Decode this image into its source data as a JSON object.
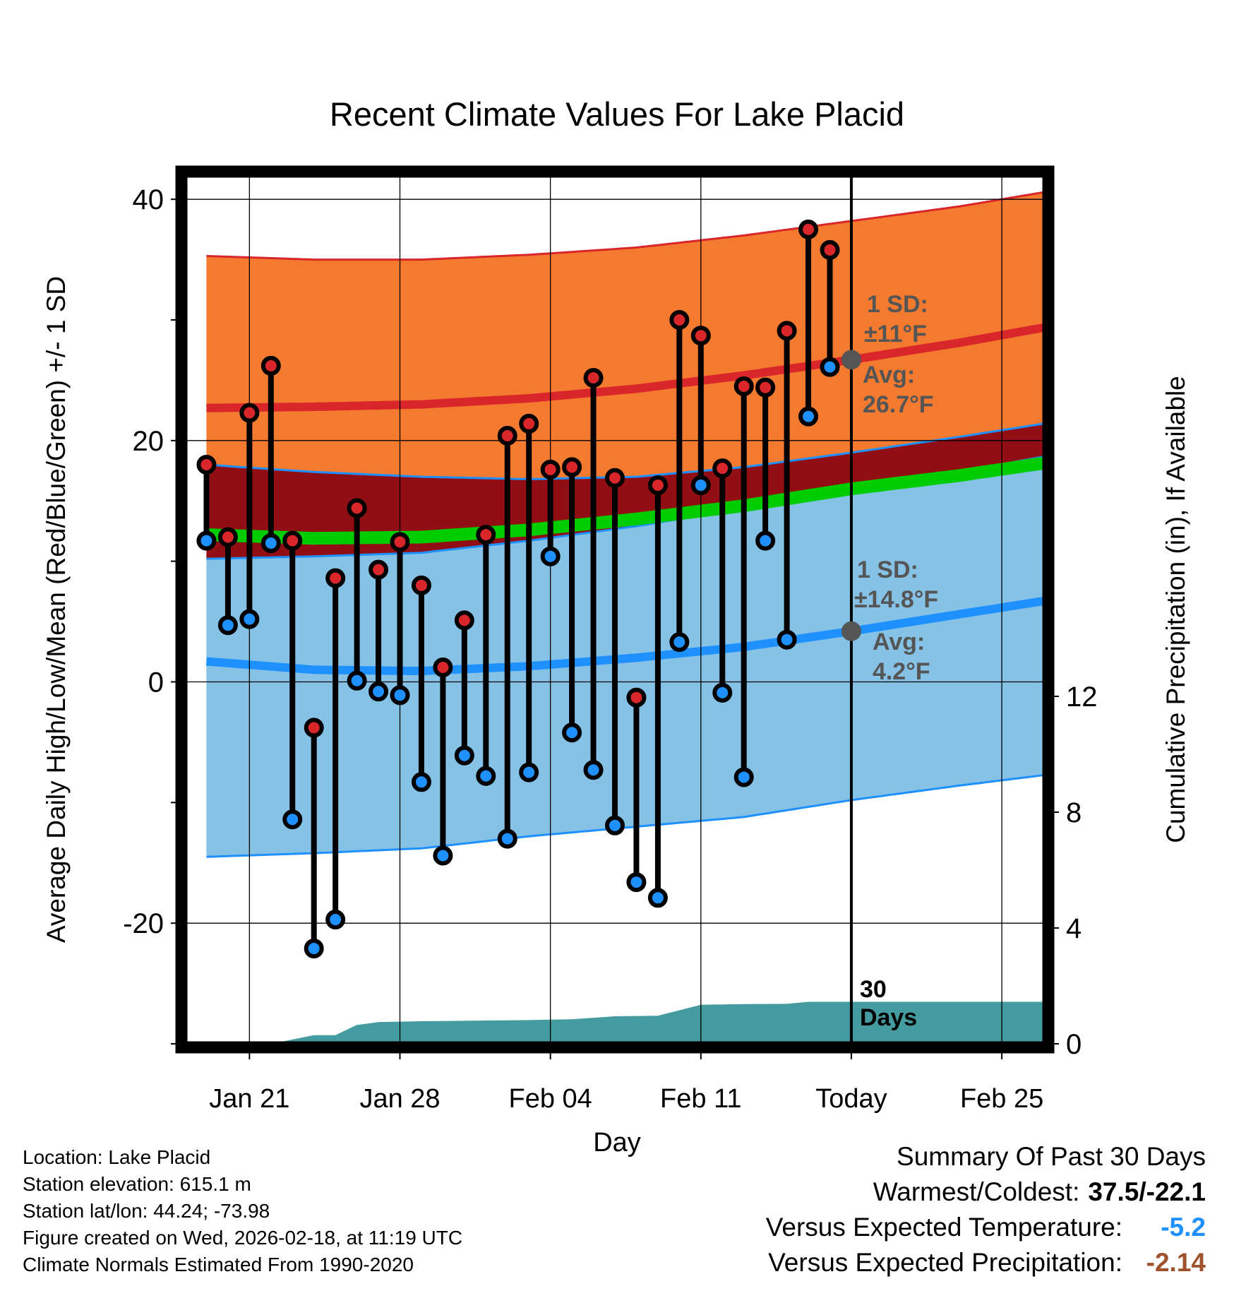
{
  "chart_data": {
    "type": "line",
    "title": "Recent Climate Values For Lake Placid",
    "xlabel": "Day",
    "ylabel": "Average Daily High/Low/Mean (Red/Blue/Green) +/- 1 SD",
    "y2label": "Cumulative Precipitation (in), If Available",
    "ylim": [
      -30,
      42
    ],
    "y2lim": [
      0,
      30
    ],
    "x_range": [
      -31,
      9
    ],
    "x_ticks": [
      {
        "offset": -28,
        "label": "Jan 21"
      },
      {
        "offset": -21,
        "label": "Jan 28"
      },
      {
        "offset": -14,
        "label": "Feb 04"
      },
      {
        "offset": -7,
        "label": "Feb 11"
      },
      {
        "offset": 0,
        "label": "Today"
      },
      {
        "offset": 7,
        "label": "Feb 25"
      }
    ],
    "y_ticks": [
      40,
      20,
      0,
      -20
    ],
    "y2_ticks": [
      0,
      4,
      8,
      12
    ],
    "normal_high": {
      "days": [
        -30,
        -25,
        -20,
        -15,
        -10,
        -5,
        0,
        5,
        10
      ],
      "mean": [
        22.7,
        22.8,
        23.0,
        23.5,
        24.3,
        25.4,
        26.7,
        28.1,
        29.7
      ],
      "sd_upper": [
        35.3,
        35.0,
        35.0,
        35.4,
        36.0,
        37.0,
        38.2,
        39.4,
        40.9
      ],
      "sd_lower": [
        18.0,
        17.4,
        17.0,
        16.8,
        17.0,
        17.8,
        19.0,
        20.3,
        21.7
      ]
    },
    "normal_low": {
      "days": [
        -30,
        -25,
        -20,
        -15,
        -10,
        -5,
        0,
        5,
        10
      ],
      "mean": [
        1.7,
        1.0,
        0.9,
        1.3,
        2.0,
        2.9,
        4.2,
        5.6,
        7.0
      ],
      "sd_upper": [
        10.2,
        10.4,
        10.7,
        11.7,
        12.9,
        14.4,
        16.0,
        17.4,
        19.0
      ],
      "sd_lower": [
        -14.5,
        -14.2,
        -13.8,
        -12.8,
        -12.0,
        -11.2,
        -9.8,
        -8.6,
        -7.5
      ]
    },
    "normal_mean": {
      "days": [
        -30,
        -25,
        -20,
        -15,
        -10,
        -5,
        0,
        5,
        10
      ],
      "values": [
        12.2,
        11.9,
        12.0,
        12.6,
        13.5,
        14.6,
        16.0,
        17.1,
        18.4
      ]
    },
    "series": [
      {
        "name": "Daily High",
        "days": [
          -30,
          -29,
          -28,
          -27,
          -26,
          -25,
          -24,
          -23,
          -22,
          -21,
          -20,
          -19,
          -18,
          -17,
          -16,
          -15,
          -14,
          -13,
          -12,
          -11,
          -10,
          -9,
          -8,
          -7,
          -6,
          -5,
          -4,
          -3,
          -2,
          -1
        ],
        "values": [
          18.0,
          12.0,
          22.3,
          26.2,
          11.7,
          -3.8,
          8.6,
          14.4,
          9.3,
          11.6,
          8.0,
          1.2,
          5.1,
          12.2,
          20.4,
          21.4,
          17.6,
          17.8,
          25.2,
          16.9,
          -1.3,
          16.3,
          30.0,
          28.7,
          17.7,
          24.5,
          24.4,
          29.1,
          37.5,
          35.8
        ]
      },
      {
        "name": "Daily Low",
        "days": [
          -30,
          -29,
          -28,
          -27,
          -26,
          -25,
          -24,
          -23,
          -22,
          -21,
          -20,
          -19,
          -18,
          -17,
          -16,
          -15,
          -14,
          -13,
          -12,
          -11,
          -10,
          -9,
          -8,
          -7,
          -6,
          -5,
          -4,
          -3,
          -2,
          -1
        ],
        "values": [
          11.7,
          4.7,
          5.2,
          11.5,
          -11.4,
          -22.1,
          -19.7,
          0.1,
          -0.8,
          -1.1,
          -8.3,
          -14.4,
          -6.1,
          -7.8,
          -13.0,
          -7.5,
          10.4,
          -4.2,
          -7.3,
          -11.9,
          -16.6,
          -17.9,
          3.3,
          16.3,
          -0.9,
          -7.9,
          11.7,
          3.5,
          22.0,
          26.1
        ]
      }
    ],
    "precip": {
      "days": [
        -31,
        -27,
        -25,
        -24,
        -23,
        -22,
        -20,
        -15,
        -13,
        -12,
        -11,
        -9,
        -7,
        -6,
        -5,
        -3,
        -2,
        9
      ],
      "values": [
        0.0,
        0.0,
        0.3,
        0.3,
        0.65,
        0.75,
        0.78,
        0.82,
        0.85,
        0.9,
        0.95,
        0.97,
        1.35,
        1.36,
        1.37,
        1.38,
        1.45,
        1.45
      ]
    },
    "today_marker": {
      "label_count": "30",
      "label_unit": "Days"
    },
    "annotations": {
      "high_sd_label": "1 SD:",
      "high_sd_value": "±11°F",
      "high_avg_label": "Avg:",
      "high_avg_value": "26.7°F",
      "high_avg": 26.7,
      "low_sd_label": "1 SD:",
      "low_sd_value": "±14.8°F",
      "low_avg_label": "Avg:",
      "low_avg_value": "4.2°F",
      "low_avg": 4.2
    },
    "colors": {
      "high_band": "#f47a30",
      "high_line": "#d8262a",
      "overlap_band": "#910e14",
      "low_band": "#85c2e6",
      "low_line": "#1e90ff",
      "mean_line": "#00cc00",
      "precip_fill": "#449ba0",
      "high_marker": "#d8262a",
      "low_marker": "#1e90ff",
      "annotation": "#555555"
    }
  },
  "info": {
    "location": "Location: Lake Placid",
    "elevation": "Station elevation: 615.1 m",
    "latlon": "Station lat/lon: 44.24; -73.98",
    "created": "Figure created on Wed, 2026-02-18, at 11:19 UTC",
    "normals": "Climate Normals Estimated From 1990-2020"
  },
  "summary": {
    "title": "Summary Of Past 30 Days",
    "warm_cold_label": "Warmest/Coldest:",
    "warm_cold_value": "37.5/-22.1",
    "temp_label": "Versus Expected Temperature:",
    "temp_value": "-5.2",
    "temp_color": "#1e90ff",
    "precip_label": "Versus Expected Precipitation:",
    "precip_value": "-2.14",
    "precip_color": "#a0522d"
  }
}
